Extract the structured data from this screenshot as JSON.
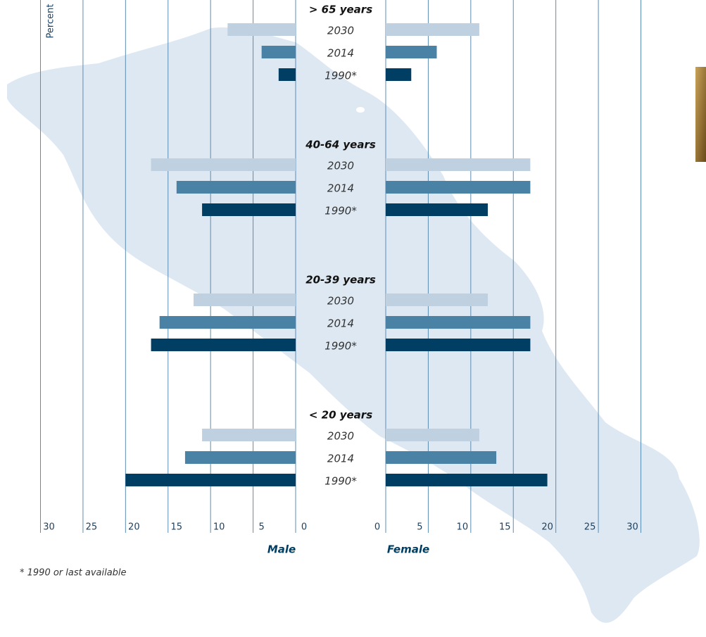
{
  "chart_data": {
    "type": "butterfly",
    "groups": [
      "> 65 years",
      "40-64 years",
      "20-39 years",
      "< 20 years"
    ],
    "series": [
      {
        "name": "2030",
        "color": "#bfd0e0",
        "male": [
          8,
          17,
          12,
          11
        ],
        "female": [
          11,
          17,
          12,
          11
        ]
      },
      {
        "name": "2014",
        "color": "#4a82a6",
        "male": [
          4,
          14,
          16,
          13
        ],
        "female": [
          6,
          17,
          17,
          13
        ]
      },
      {
        "name": "1990*",
        "color": "#003f63",
        "male": [
          2,
          11,
          17,
          20
        ],
        "female": [
          3,
          12,
          17,
          19
        ]
      }
    ],
    "xlim": [
      0,
      30
    ],
    "xticks": [
      0,
      5,
      10,
      15,
      20,
      25,
      30
    ],
    "left_label": "Male",
    "right_label": "Female",
    "ylabel": "Percent",
    "footnote": "* 1990 or last available",
    "grid": true
  }
}
